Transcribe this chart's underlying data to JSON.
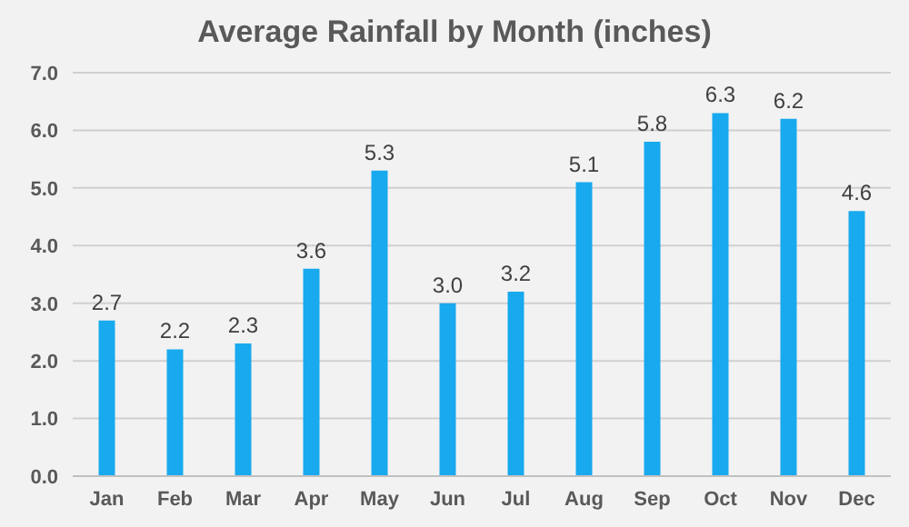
{
  "chart_data": {
    "type": "bar",
    "title": "Average Rainfall by Month (inches)",
    "categories": [
      "Jan",
      "Feb",
      "Mar",
      "Apr",
      "May",
      "Jun",
      "Jul",
      "Aug",
      "Sep",
      "Oct",
      "Nov",
      "Dec"
    ],
    "values": [
      2.7,
      2.2,
      2.3,
      3.6,
      5.3,
      3.0,
      3.2,
      5.1,
      5.8,
      6.3,
      6.2,
      4.6
    ],
    "value_labels": [
      "2.7",
      "2.2",
      "2.3",
      "3.6",
      "5.3",
      "3.0",
      "3.2",
      "5.1",
      "5.8",
      "6.3",
      "6.2",
      "4.6"
    ],
    "color": "#18a9ee",
    "ylim": [
      0,
      7
    ],
    "yticks": [
      {
        "value": 0,
        "label": "0.0"
      },
      {
        "value": 1,
        "label": "1.0"
      },
      {
        "value": 2,
        "label": "2.0"
      },
      {
        "value": 3,
        "label": "3.0"
      },
      {
        "value": 4,
        "label": "4.0"
      },
      {
        "value": 5,
        "label": "5.0"
      },
      {
        "value": 6,
        "label": "6.0"
      },
      {
        "value": 7,
        "label": "7.0"
      }
    ],
    "grid": "y"
  }
}
